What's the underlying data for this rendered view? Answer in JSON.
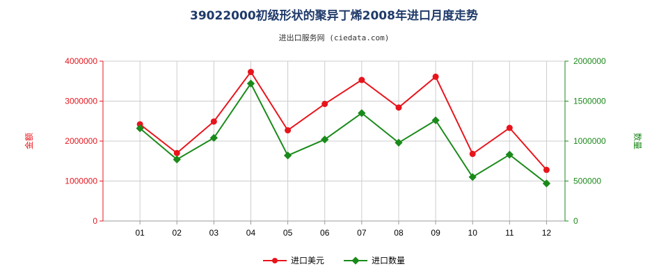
{
  "title": "39022000初级形状的聚异丁烯2008年进口月度走势",
  "subtitle": "进出口服务网 (ciedata.com)",
  "colors": {
    "left": "#e8141c",
    "right": "#1a8a1a",
    "grid": "#cccccc"
  },
  "chart_data": {
    "type": "line",
    "categories": [
      "01",
      "02",
      "03",
      "04",
      "05",
      "06",
      "07",
      "08",
      "09",
      "10",
      "11",
      "12"
    ],
    "yleft": {
      "label": "金额",
      "lim": [
        0,
        4000000
      ],
      "ticks": [
        "0",
        "1000000",
        "2000000",
        "3000000",
        "4000000"
      ]
    },
    "yright": {
      "label": "数量",
      "lim": [
        0,
        2000000
      ],
      "ticks": [
        "0",
        "500000",
        "1000000",
        "1500000",
        "2000000"
      ]
    },
    "series": [
      {
        "name": "进口美元",
        "axis": "left",
        "values": [
          2420000,
          1700000,
          2490000,
          3730000,
          2270000,
          2930000,
          3530000,
          2840000,
          3610000,
          1680000,
          2330000,
          1280000
        ]
      },
      {
        "name": "进口数量",
        "axis": "right",
        "values": [
          1160000,
          770000,
          1040000,
          1720000,
          820000,
          1020000,
          1350000,
          980000,
          1260000,
          550000,
          830000,
          470000
        ]
      }
    ],
    "grid": true,
    "legend_position": "bottom"
  }
}
